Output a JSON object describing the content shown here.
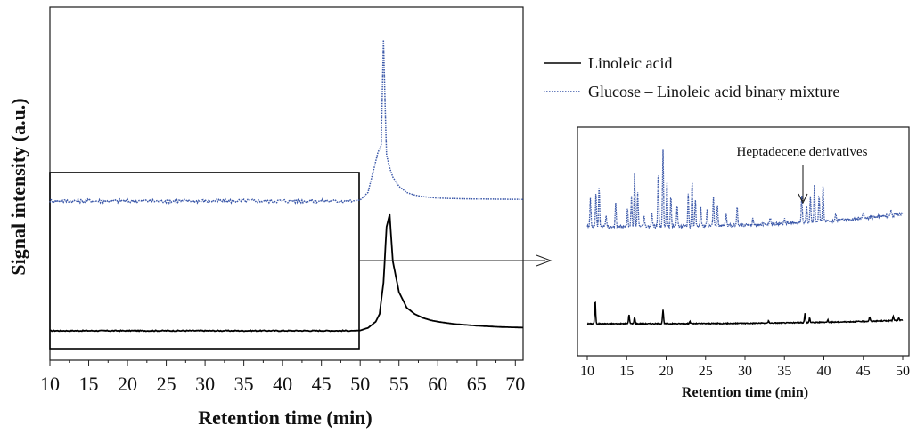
{
  "colors": {
    "linoleic": "#000000",
    "mixture": "#3a57a8",
    "frame": "#1a1a1a"
  },
  "legend": {
    "placement": "top-right"
  },
  "chart_data": [
    {
      "type": "line",
      "xlabel": "Retention time (min)",
      "ylabel": "Signal intensity (a.u.)",
      "xlim": [
        10,
        71
      ],
      "ylim": [
        0,
        1
      ],
      "xticks": [
        "10",
        "15",
        "20",
        "25",
        "30",
        "35",
        "40",
        "45",
        "50",
        "55",
        "60",
        "65",
        "70"
      ],
      "series": [
        {
          "name": "Linoleic acid",
          "style": "solid",
          "x": [
            10,
            30,
            49,
            50,
            51,
            52,
            52.5,
            53,
            53.4,
            53.8,
            54.2,
            55,
            56,
            57,
            58,
            59,
            60,
            62,
            65,
            68,
            71
          ],
          "y": [
            0.066,
            0.066,
            0.066,
            0.067,
            0.075,
            0.095,
            0.12,
            0.22,
            0.4,
            0.44,
            0.29,
            0.19,
            0.14,
            0.12,
            0.108,
            0.1,
            0.095,
            0.088,
            0.082,
            0.078,
            0.076
          ]
        },
        {
          "name": "Glucose – Linoleic acid binary mixture",
          "style": "dotted",
          "x": [
            10,
            30,
            49,
            50,
            51,
            51.8,
            52.3,
            52.7,
            53.0,
            53.2,
            53.4,
            53.8,
            54.2,
            55,
            56,
            57,
            58,
            60,
            63,
            66,
            71
          ],
          "y": [
            0.483,
            0.483,
            0.483,
            0.486,
            0.51,
            0.59,
            0.64,
            0.66,
            1.0,
            0.8,
            0.63,
            0.59,
            0.56,
            0.53,
            0.51,
            0.502,
            0.497,
            0.492,
            0.49,
            0.489,
            0.488
          ]
        }
      ],
      "zoom_window": {
        "x": [
          10,
          50
        ]
      }
    },
    {
      "type": "line",
      "xlabel": "Retention time (min)",
      "xlim": [
        10,
        50
      ],
      "xticks": [
        "10",
        "15",
        "20",
        "25",
        "30",
        "35",
        "40",
        "45",
        "50"
      ],
      "annotation": {
        "text": "Heptadecene derivatives",
        "x": 37.5
      },
      "series": [
        {
          "name": "Linoleic acid",
          "style": "solid",
          "baseline": [
            0.14,
            0.155
          ],
          "peaks": [
            {
              "x": 11.0,
              "h": 0.1
            },
            {
              "x": 15.3,
              "h": 0.04
            },
            {
              "x": 16.0,
              "h": 0.03
            },
            {
              "x": 19.6,
              "h": 0.06
            },
            {
              "x": 23.0,
              "h": 0.01
            },
            {
              "x": 33.0,
              "h": 0.01
            },
            {
              "x": 37.6,
              "h": 0.04
            },
            {
              "x": 38.2,
              "h": 0.02
            },
            {
              "x": 40.5,
              "h": 0.01
            },
            {
              "x": 45.8,
              "h": 0.02
            },
            {
              "x": 48.8,
              "h": 0.02
            },
            {
              "x": 49.5,
              "h": 0.01
            }
          ]
        },
        {
          "name": "Glucose – Linoleic acid binary mixture",
          "style": "dotted",
          "baseline": [
            0.565,
            0.62
          ],
          "peaks": [
            {
              "x": 10.4,
              "h": 0.12
            },
            {
              "x": 11.1,
              "h": 0.15
            },
            {
              "x": 11.5,
              "h": 0.18
            },
            {
              "x": 12.4,
              "h": 0.05
            },
            {
              "x": 13.6,
              "h": 0.1
            },
            {
              "x": 15.1,
              "h": 0.08
            },
            {
              "x": 15.6,
              "h": 0.13
            },
            {
              "x": 16.0,
              "h": 0.23
            },
            {
              "x": 16.4,
              "h": 0.15
            },
            {
              "x": 17.2,
              "h": 0.05
            },
            {
              "x": 18.2,
              "h": 0.06
            },
            {
              "x": 19.0,
              "h": 0.24
            },
            {
              "x": 19.6,
              "h": 0.33
            },
            {
              "x": 20.1,
              "h": 0.2
            },
            {
              "x": 20.6,
              "h": 0.14
            },
            {
              "x": 21.4,
              "h": 0.09
            },
            {
              "x": 22.8,
              "h": 0.14
            },
            {
              "x": 23.3,
              "h": 0.2
            },
            {
              "x": 23.7,
              "h": 0.12
            },
            {
              "x": 24.4,
              "h": 0.08
            },
            {
              "x": 25.2,
              "h": 0.07
            },
            {
              "x": 26.0,
              "h": 0.13
            },
            {
              "x": 26.5,
              "h": 0.09
            },
            {
              "x": 27.6,
              "h": 0.05
            },
            {
              "x": 29.0,
              "h": 0.08
            },
            {
              "x": 31.0,
              "h": 0.03
            },
            {
              "x": 33.2,
              "h": 0.03
            },
            {
              "x": 35.0,
              "h": 0.02
            },
            {
              "x": 37.2,
              "h": 0.12
            },
            {
              "x": 37.8,
              "h": 0.08
            },
            {
              "x": 38.3,
              "h": 0.11
            },
            {
              "x": 38.8,
              "h": 0.16
            },
            {
              "x": 39.4,
              "h": 0.12
            },
            {
              "x": 39.9,
              "h": 0.16
            },
            {
              "x": 41.5,
              "h": 0.03
            },
            {
              "x": 45.0,
              "h": 0.03
            },
            {
              "x": 48.5,
              "h": 0.02
            }
          ]
        }
      ]
    }
  ]
}
